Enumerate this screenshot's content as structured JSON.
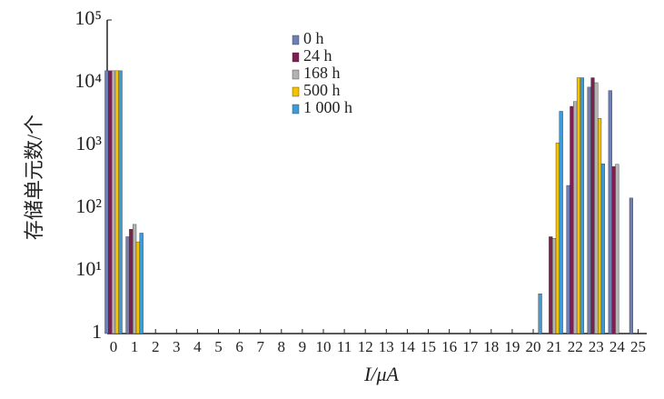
{
  "chart_data": {
    "type": "bar",
    "x_label": "I/μA",
    "y_label": "存储单元数/个",
    "categories": [
      "0",
      "1",
      "2",
      "3",
      "4",
      "5",
      "6",
      "7",
      "8",
      "9",
      "10",
      "11",
      "12",
      "13",
      "14",
      "15",
      "16",
      "17",
      "18",
      "19",
      "20",
      "21",
      "22",
      "23",
      "24",
      "25"
    ],
    "series": [
      {
        "name": "0 h",
        "color": "#6f7fb3",
        "values": [
          15500,
          35,
          null,
          null,
          null,
          null,
          null,
          null,
          null,
          null,
          null,
          null,
          null,
          null,
          null,
          null,
          null,
          null,
          null,
          null,
          null,
          null,
          230,
          8500,
          7500,
          145
        ]
      },
      {
        "name": "24 h",
        "color": "#7d1f4f",
        "values": [
          15500,
          46,
          null,
          null,
          null,
          null,
          null,
          null,
          null,
          null,
          null,
          null,
          null,
          null,
          null,
          null,
          null,
          null,
          null,
          null,
          null,
          35,
          4200,
          12000,
          460,
          null
        ]
      },
      {
        "name": "168 h",
        "color": "#b3b3b3",
        "values": [
          15500,
          55,
          null,
          null,
          null,
          null,
          null,
          null,
          null,
          null,
          null,
          null,
          null,
          null,
          null,
          null,
          null,
          null,
          null,
          null,
          null,
          33,
          5000,
          10000,
          500,
          null
        ]
      },
      {
        "name": "500 h",
        "color": "#f5c200",
        "values": [
          15500,
          29,
          null,
          null,
          null,
          null,
          null,
          null,
          null,
          null,
          null,
          null,
          null,
          null,
          null,
          null,
          null,
          null,
          null,
          null,
          null,
          1100,
          12000,
          2700,
          null,
          null
        ]
      },
      {
        "name": "1 000 h",
        "color": "#3f9bd8",
        "values": [
          15500,
          40,
          null,
          null,
          null,
          null,
          null,
          null,
          null,
          null,
          null,
          null,
          null,
          null,
          null,
          null,
          null,
          null,
          null,
          null,
          4.3,
          3500,
          12000,
          510,
          null,
          null
        ]
      }
    ],
    "ylim": [
      1,
      100000
    ],
    "log_y": true,
    "yticks": [
      1,
      {
        "value": 10,
        "label": "10¹"
      },
      {
        "value": 100,
        "label": "10²"
      },
      {
        "value": 1000,
        "label": "10³"
      },
      {
        "value": 10000,
        "label": "10⁴"
      },
      {
        "value": 100000,
        "label": "10⁵"
      }
    ]
  }
}
